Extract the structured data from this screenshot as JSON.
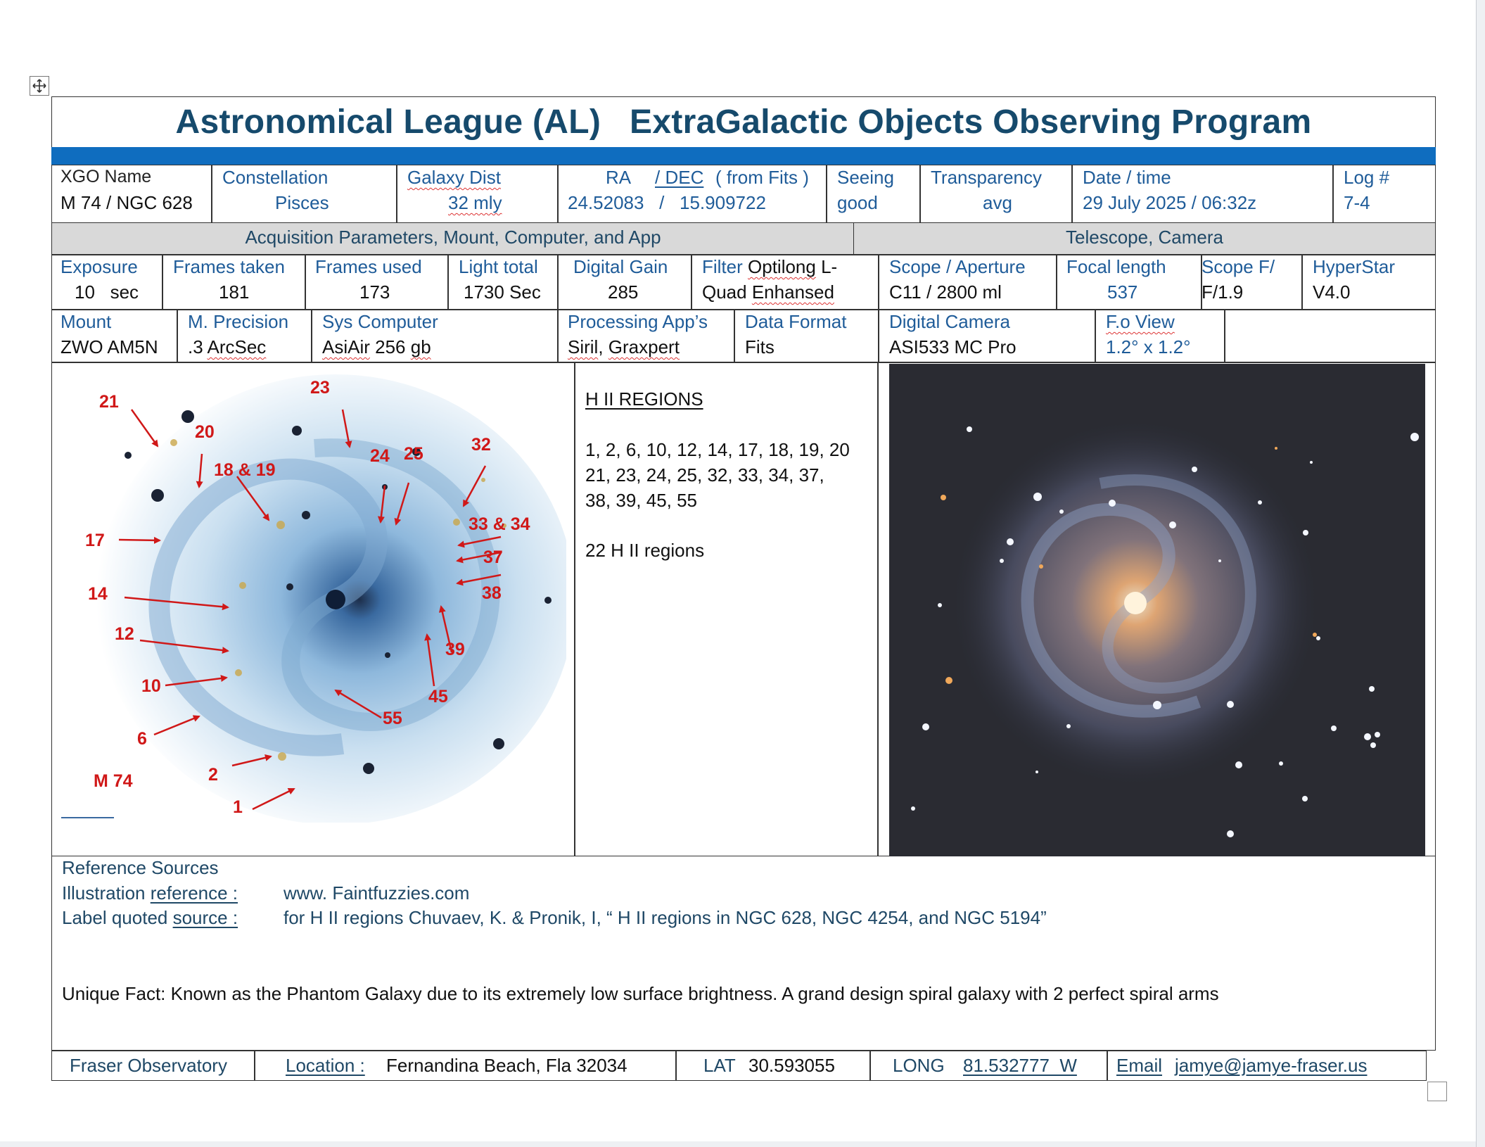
{
  "title": "Astronomical League (AL)   ExtraGalactic Objects Observing Program",
  "header_row": {
    "xgo_name_label": "XGO Name",
    "xgo_name_value": "M 74 / NGC 628",
    "constellation_label": "Constellation",
    "constellation_value": "Pisces",
    "galaxy_dist_label": "Galaxy Dist",
    "galaxy_dist_value": "32 mly",
    "ra_dec_label_ra": "RA",
    "ra_dec_label_dec": "/ DEC",
    "ra_dec_label_src": "( from Fits )",
    "ra_dec_value": "24.52083   /   15.909722",
    "seeing_label": "Seeing",
    "seeing_value": "good",
    "transparency_label": "Transparency",
    "transparency_value": "avg",
    "datetime_label": "Date / time",
    "datetime_value": "29 July 2025 / 06:32z",
    "log_label": "Log #",
    "log_value": "7-4"
  },
  "section_headers": {
    "acquisition": "Acquisition Parameters, Mount, Computer, and App",
    "telescope": "Telescope, Camera"
  },
  "params_row": {
    "exposure_label": "Exposure",
    "exposure_value": "10   sec",
    "frames_taken_label": "Frames taken",
    "frames_taken_value": "181",
    "frames_used_label": "Frames used",
    "frames_used_value": "173",
    "light_total_label": "Light total",
    "light_total_value": "1730 Sec",
    "digital_gain_label": "Digital Gain",
    "digital_gain_value": "285",
    "filter_label": "Filter",
    "filter_value_1": "Optilong",
    "filter_value_1b": " L-",
    "filter_value_2": "Quad",
    "filter_value_2b": "Enhansed",
    "scope_label": "Scope / Aperture",
    "scope_value": "C11 / 2800 ml",
    "focal_label": "Focal length",
    "focal_value": "537",
    "scopef_label": "Scope F/",
    "scopef_value": "F/1.9",
    "hyperstar_label": "HyperStar",
    "hyperstar_value": "V4.0"
  },
  "mount_row": {
    "mount_label": "Mount",
    "mount_value": "ZWO AM5N",
    "precision_label": "M. Precision",
    "precision_value_a": ".3 ",
    "precision_value_b": "ArcSec",
    "computer_label": "Sys Computer",
    "computer_value_a": "AsiAir",
    "computer_value_b": " 256 ",
    "computer_value_c": "gb",
    "processing_label": "Processing App’s",
    "processing_value_a": "Siril",
    "processing_value_b": ", ",
    "processing_value_c": "Graxpert",
    "format_label": "Data Format",
    "format_value": "Fits",
    "camera_label": "Digital Camera",
    "camera_value": "ASI533 MC Pro",
    "fov_label": "F.o View",
    "fov_value": "1.2° x 1.2°"
  },
  "hii": {
    "heading": "H II REGIONS",
    "line1": "1, 2, 6, 10, 12, 14, 17, 18, 19, 20",
    "line2": "21, 23, 24, 25, 32, 33, 34, 37,",
    "line3": "38, 39, 45, 55",
    "count": "22 H II regions"
  },
  "illustration_labels": [
    "21",
    "20",
    "23",
    "18 & 19",
    "24",
    "25",
    "32",
    "33 & 34",
    "17",
    "37",
    "14",
    "38",
    "12",
    "39",
    "10",
    "45",
    "55",
    "6",
    "M 74",
    "2",
    "1"
  ],
  "references": {
    "heading": "Reference Sources",
    "illus_label": "Illustration reference :",
    "illus_value": "www. Faintfuzzies.com",
    "label_src_label": "Label quoted source :",
    "label_src_value": "for H II regions Chuvaev, K. & Pronik, I, “ H II regions in NGC 628, NGC 4254, and NGC 5194”",
    "fact": "Unique Fact:  Known as the Phantom Galaxy due to its extremely low surface brightness. A grand design spiral galaxy with 2 perfect spiral arms"
  },
  "footer": {
    "observatory": "Fraser Observatory",
    "location_label": "Location :",
    "location_value": "Fernandina Beach, Fla 32034",
    "lat_label": "LAT",
    "lat_value": "30.593055",
    "long_label": "LONG",
    "long_value": "81.532777  W",
    "email_label": "Email",
    "email_value": "jamye@jamye-fraser.us"
  },
  "colors": {
    "title": "#164a6c",
    "bar": "#0f6dbf",
    "label_blue": "#1f5c99",
    "annotation_red": "#d01818"
  }
}
